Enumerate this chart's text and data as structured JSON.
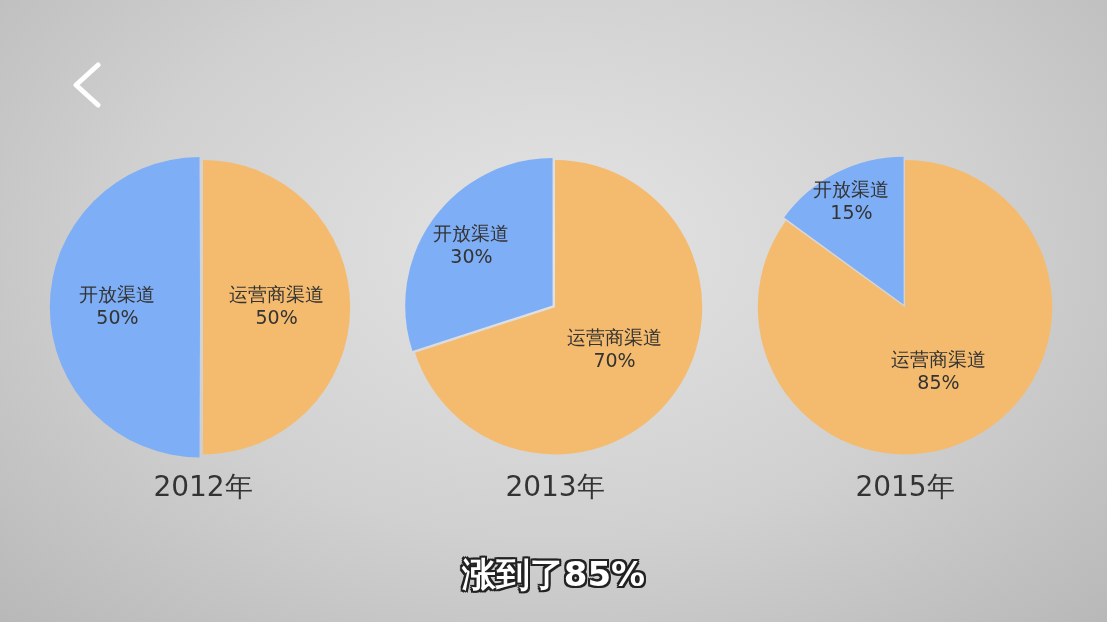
{
  "chart_data": [
    {
      "type": "pie",
      "title": "2012年",
      "categories": [
        "开放渠道",
        "运营商渠道"
      ],
      "values": [
        50,
        50
      ],
      "colors": [
        "#7eaef6",
        "#f4bb6e"
      ],
      "value_labels": [
        "50%",
        "50%"
      ]
    },
    {
      "type": "pie",
      "title": "2013年",
      "categories": [
        "开放渠道",
        "运营商渠道"
      ],
      "values": [
        30,
        70
      ],
      "colors": [
        "#7eaef6",
        "#f4bb6e"
      ],
      "value_labels": [
        "30%",
        "70%"
      ],
      "annotations": [
        "涨到了85%"
      ]
    },
    {
      "type": "pie",
      "title": "2015年",
      "categories": [
        "开放渠道",
        "运营商渠道"
      ],
      "values": [
        15,
        85
      ],
      "colors": [
        "#7eaef6",
        "#f4bb6e"
      ],
      "value_labels": [
        "15%",
        "85%"
      ]
    }
  ]
}
